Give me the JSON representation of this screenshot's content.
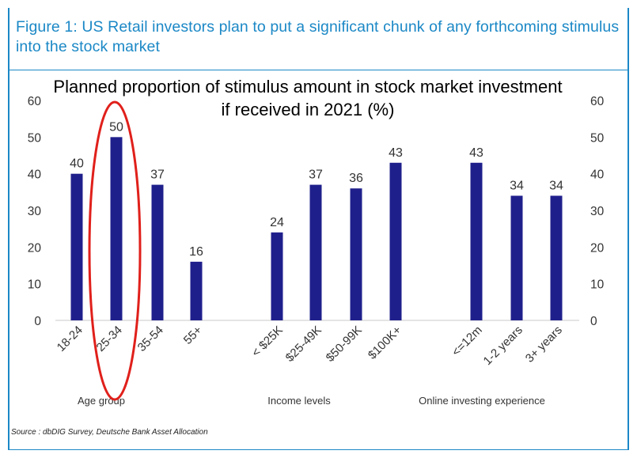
{
  "figure": {
    "title": "Figure 1: US Retail investors plan to put a significant chunk of any forthcoming stimulus into the stock market",
    "source": "Source : dbDIG Survey, Deutsche Bank Asset Allocation",
    "accent_color": "#1b88c6"
  },
  "chart_data": {
    "type": "bar",
    "title_lines": [
      "Planned proportion of stimulus amount in stock market investment",
      "if received in 2021 (%)"
    ],
    "categories": [
      "18-24",
      "25-34",
      "35-54",
      "55+",
      "< $25K",
      "$25-49K",
      "$50-99K",
      "$100K+",
      "<=12m",
      "1-2 years",
      "3+ years"
    ],
    "values": [
      40,
      50,
      37,
      16,
      24,
      37,
      36,
      43,
      43,
      34,
      34
    ],
    "groups": [
      {
        "name": "Age group",
        "categories": [
          "18-24",
          "25-34",
          "35-54",
          "55+"
        ]
      },
      {
        "name": "Income levels",
        "categories": [
          "< $25K",
          "$25-49K",
          "$50-99K",
          "$100K+"
        ]
      },
      {
        "name": "Online investing experience",
        "categories": [
          "<=12m",
          "1-2 years",
          "3+ years"
        ]
      }
    ],
    "ylim": [
      0,
      60
    ],
    "yticks": [
      0,
      10,
      20,
      30,
      40,
      50,
      60
    ],
    "axis_sides": "left and right",
    "grid": false,
    "data_labels": true,
    "bar_color": "#1f1f8c",
    "highlight": {
      "category": "25-34",
      "shape": "ellipse",
      "color": "#e0201b"
    }
  }
}
